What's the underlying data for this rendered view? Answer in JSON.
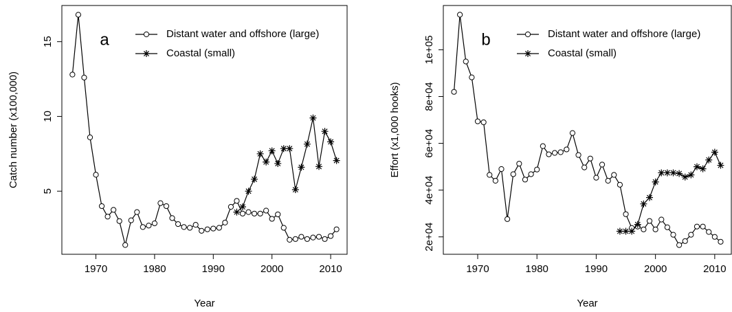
{
  "chart_data": [
    {
      "type": "line",
      "annotation": "a",
      "x_label": "Year",
      "y_label": "Catch number (x100,000)",
      "x": [
        1966,
        1967,
        1968,
        1969,
        1970,
        1971,
        1972,
        1973,
        1974,
        1975,
        1976,
        1977,
        1978,
        1979,
        1980,
        1981,
        1982,
        1983,
        1984,
        1985,
        1986,
        1987,
        1988,
        1989,
        1990,
        1991,
        1992,
        1993,
        1994,
        1995,
        1996,
        1997,
        1998,
        1999,
        2000,
        2001,
        2002,
        2003,
        2004,
        2005,
        2006,
        2007,
        2008,
        2009,
        2010,
        2011
      ],
      "series": [
        {
          "name": "Distant water and offshore (large)",
          "color": "#000000",
          "marker": "circle",
          "values": [
            12.8,
            16.8,
            12.6,
            8.6,
            6.1,
            4.0,
            3.3,
            3.75,
            3.0,
            1.4,
            3.05,
            3.6,
            2.6,
            2.7,
            2.85,
            4.2,
            4.0,
            3.2,
            2.8,
            2.6,
            2.55,
            2.75,
            2.35,
            2.45,
            2.5,
            2.55,
            2.9,
            3.95,
            4.35,
            3.5,
            3.6,
            3.5,
            3.5,
            3.7,
            3.15,
            3.45,
            2.55,
            1.75,
            1.8,
            1.95,
            1.8,
            1.9,
            1.95,
            1.8,
            2.0,
            2.45
          ]
        },
        {
          "name": "Coastal (small)",
          "color": "#000000",
          "marker": "asterisk",
          "values": [
            null,
            null,
            null,
            null,
            null,
            null,
            null,
            null,
            null,
            null,
            null,
            null,
            null,
            null,
            null,
            null,
            null,
            null,
            null,
            null,
            null,
            null,
            null,
            null,
            null,
            null,
            null,
            null,
            3.6,
            3.95,
            5.0,
            5.8,
            7.5,
            6.95,
            7.7,
            6.85,
            7.85,
            7.85,
            5.1,
            6.6,
            8.15,
            9.9,
            6.65,
            9.0,
            8.3,
            7.05
          ]
        }
      ],
      "xlim": [
        1964.2,
        2012.8
      ],
      "xticks": [
        1970,
        1980,
        1990,
        2000,
        2010
      ],
      "ylim": [
        0.78,
        17.42
      ],
      "yticks": [
        5,
        10,
        15
      ]
    },
    {
      "type": "line",
      "annotation": "b",
      "x_label": "Year",
      "y_label": "Effort (x1,000 hooks)",
      "x": [
        1966,
        1967,
        1968,
        1969,
        1970,
        1971,
        1972,
        1973,
        1974,
        1975,
        1976,
        1977,
        1978,
        1979,
        1980,
        1981,
        1982,
        1983,
        1984,
        1985,
        1986,
        1987,
        1988,
        1989,
        1990,
        1991,
        1992,
        1993,
        1994,
        1995,
        1996,
        1997,
        1998,
        1999,
        2000,
        2001,
        2002,
        2003,
        2004,
        2005,
        2006,
        2007,
        2008,
        2009,
        2010,
        2011
      ],
      "series": [
        {
          "name": "Distant water and offshore (large)",
          "color": "#000000",
          "marker": "circle",
          "values": [
            82000,
            115000,
            95000,
            88200,
            69400,
            69000,
            46500,
            44000,
            49000,
            27600,
            46800,
            51300,
            44500,
            46800,
            48800,
            58800,
            55300,
            55900,
            56200,
            57400,
            64400,
            55000,
            49700,
            53500,
            45300,
            50900,
            44000,
            46500,
            42300,
            29700,
            23800,
            24400,
            23200,
            26800,
            23200,
            27400,
            24100,
            20900,
            16500,
            18200,
            20900,
            24400,
            24400,
            22100,
            20000,
            17900
          ]
        },
        {
          "name": "Coastal (small)",
          "color": "#000000",
          "marker": "asterisk",
          "values": [
            null,
            null,
            null,
            null,
            null,
            null,
            null,
            null,
            null,
            null,
            null,
            null,
            null,
            null,
            null,
            null,
            null,
            null,
            null,
            null,
            null,
            null,
            null,
            null,
            null,
            null,
            null,
            null,
            22400,
            22400,
            22400,
            25300,
            34100,
            36800,
            43500,
            47400,
            47400,
            47400,
            47100,
            45600,
            46500,
            50000,
            49100,
            52900,
            56200,
            50600
          ]
        }
      ],
      "xlim": [
        1964.2,
        2012.8
      ],
      "xticks": [
        1970,
        1980,
        1990,
        2000,
        2010
      ],
      "ylim": [
        12560,
        118940
      ],
      "yticks": [
        {
          "value": 20000,
          "label": "2e+04"
        },
        {
          "value": 40000,
          "label": "4e+04"
        },
        {
          "value": 60000,
          "label": "6e+04"
        },
        {
          "value": 80000,
          "label": "8e+04"
        },
        {
          "value": 100000,
          "label": "1e+05"
        }
      ]
    }
  ]
}
